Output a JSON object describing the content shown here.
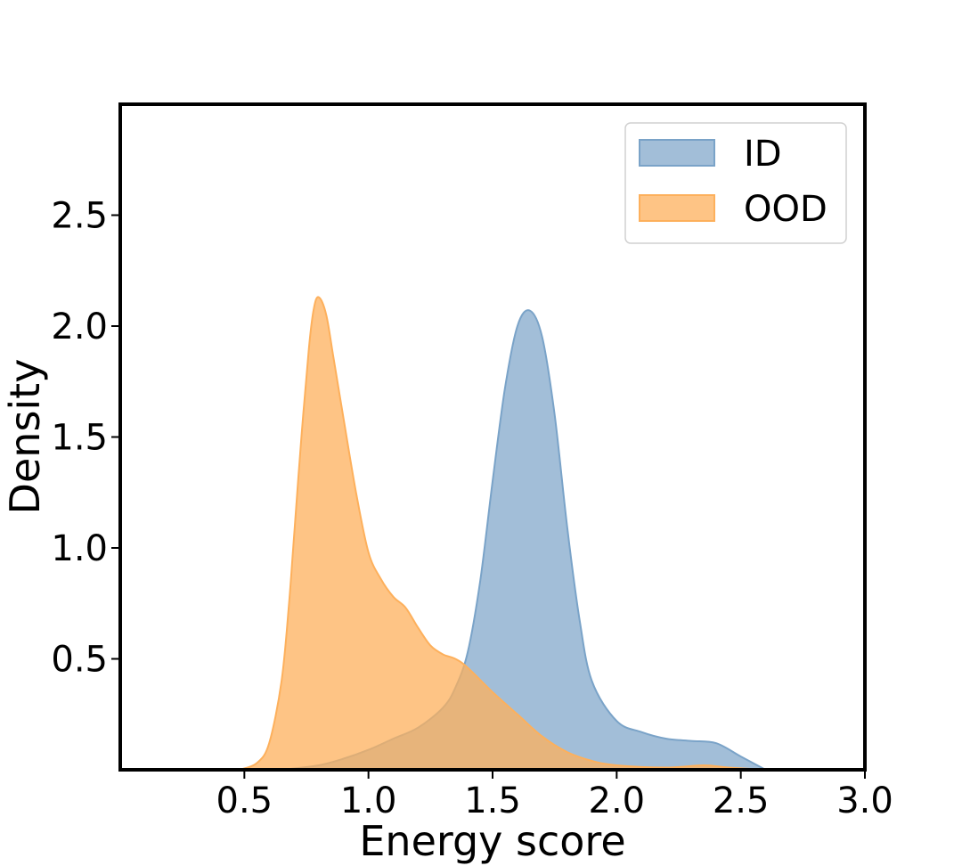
{
  "chart_data": {
    "type": "area",
    "title": "",
    "xlabel": "Energy score",
    "ylabel": "Density",
    "xlim": [
      0.0,
      3.0
    ],
    "ylim": [
      0.0,
      3.0
    ],
    "xticks": [
      0.5,
      1.0,
      1.5,
      2.0,
      2.5,
      3.0
    ],
    "xtick_labels": [
      "0.5",
      "1.0",
      "1.5",
      "2.0",
      "2.5",
      "3.0"
    ],
    "yticks": [
      0.5,
      1.0,
      1.5,
      2.0,
      2.5
    ],
    "ytick_labels": [
      "0.5",
      "1.0",
      "1.5",
      "2.0",
      "2.5"
    ],
    "grid": false,
    "legend_position": "top-right",
    "series": [
      {
        "name": "ID",
        "color": "#7aa3c8",
        "fill_opacity": 0.7,
        "points": [
          [
            0.65,
            0.0
          ],
          [
            0.8,
            0.02
          ],
          [
            0.9,
            0.05
          ],
          [
            1.0,
            0.09
          ],
          [
            1.1,
            0.14
          ],
          [
            1.2,
            0.19
          ],
          [
            1.3,
            0.28
          ],
          [
            1.35,
            0.37
          ],
          [
            1.4,
            0.53
          ],
          [
            1.45,
            0.85
          ],
          [
            1.5,
            1.3
          ],
          [
            1.55,
            1.72
          ],
          [
            1.6,
            2.0
          ],
          [
            1.65,
            2.07
          ],
          [
            1.7,
            1.95
          ],
          [
            1.75,
            1.6
          ],
          [
            1.8,
            1.1
          ],
          [
            1.85,
            0.68
          ],
          [
            1.9,
            0.4
          ],
          [
            2.0,
            0.22
          ],
          [
            2.1,
            0.17
          ],
          [
            2.2,
            0.14
          ],
          [
            2.3,
            0.13
          ],
          [
            2.4,
            0.12
          ],
          [
            2.5,
            0.06
          ],
          [
            2.6,
            0.0
          ]
        ]
      },
      {
        "name": "OOD",
        "color": "#fdb05c",
        "fill_opacity": 0.75,
        "points": [
          [
            0.48,
            0.0
          ],
          [
            0.55,
            0.03
          ],
          [
            0.6,
            0.12
          ],
          [
            0.65,
            0.4
          ],
          [
            0.68,
            0.75
          ],
          [
            0.7,
            1.05
          ],
          [
            0.73,
            1.5
          ],
          [
            0.76,
            1.9
          ],
          [
            0.78,
            2.08
          ],
          [
            0.8,
            2.13
          ],
          [
            0.83,
            2.05
          ],
          [
            0.86,
            1.85
          ],
          [
            0.9,
            1.58
          ],
          [
            0.95,
            1.25
          ],
          [
            1.0,
            0.98
          ],
          [
            1.05,
            0.86
          ],
          [
            1.1,
            0.78
          ],
          [
            1.15,
            0.73
          ],
          [
            1.2,
            0.64
          ],
          [
            1.25,
            0.56
          ],
          [
            1.3,
            0.52
          ],
          [
            1.35,
            0.5
          ],
          [
            1.4,
            0.46
          ],
          [
            1.5,
            0.35
          ],
          [
            1.6,
            0.25
          ],
          [
            1.7,
            0.15
          ],
          [
            1.8,
            0.08
          ],
          [
            1.9,
            0.04
          ],
          [
            2.0,
            0.02
          ],
          [
            2.2,
            0.01
          ],
          [
            2.35,
            0.02
          ],
          [
            2.45,
            0.01
          ],
          [
            2.6,
            0.0
          ]
        ]
      }
    ]
  }
}
